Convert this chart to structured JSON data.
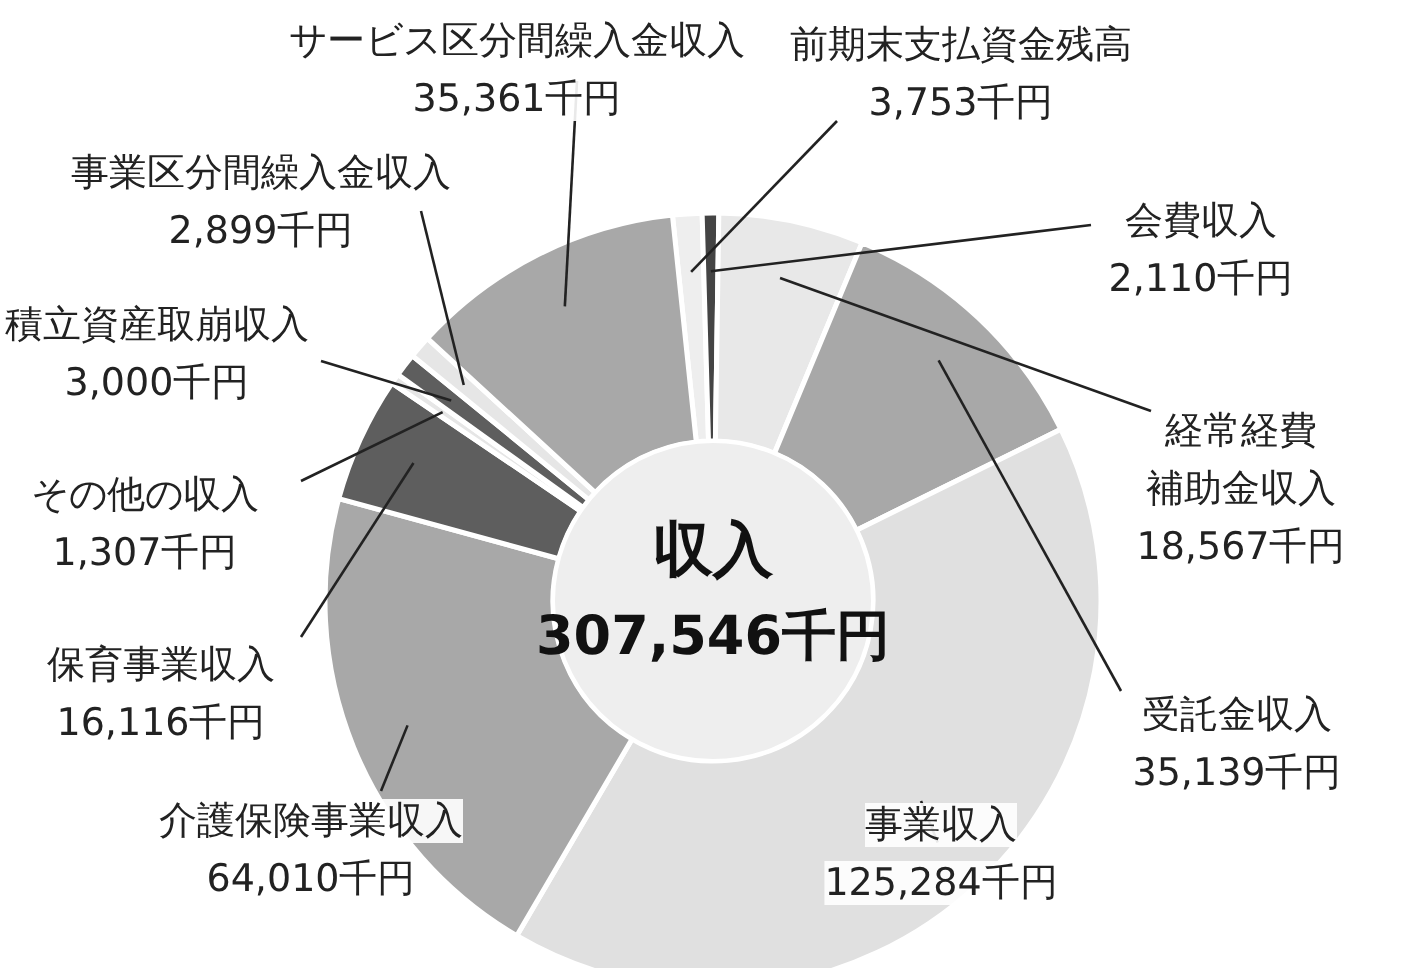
{
  "chart_data": {
    "type": "donut",
    "title": "収入",
    "subtitle": "307,546千円",
    "categories": [
      "前期末支払資金残高",
      "会費収入",
      "経常経費補助金収入",
      "受託金収入",
      "事業収入",
      "介護保険事業収入",
      "保育事業収入",
      "その他の収入",
      "積立資産取崩収入",
      "事業区分間繰入金収入",
      "サービス区分間繰入金収入"
    ],
    "values": [
      3753,
      2110,
      18567,
      35139,
      125284,
      64010,
      16116,
      1307,
      3000,
      2899,
      35361
    ],
    "colors": [
      "#eeeeee",
      "#444444",
      "#e8e8e8",
      "#a8a8a8",
      "#e0e0e0",
      "#a8a8a8",
      "#5e5e5e",
      "#e6e6e6",
      "#5e5e5e",
      "#e6e6e6",
      "#a8a8a8"
    ],
    "value_labels": [
      "3,753千円",
      "2,110千円",
      "18,567千円",
      "35,139千円",
      "125,284千円",
      "64,010千円",
      "16,116千円",
      "1,307千円",
      "3,000千円",
      "2,899千円",
      "35,361千円"
    ]
  }
}
